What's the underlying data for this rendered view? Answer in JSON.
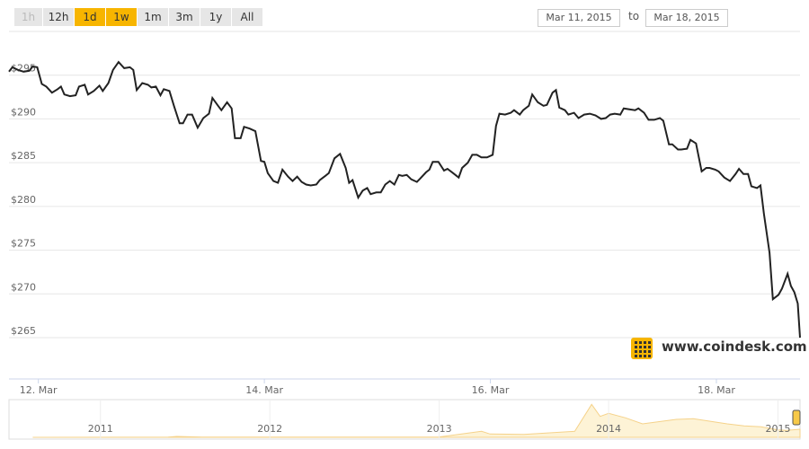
{
  "range_selector": {
    "buttons": [
      {
        "label": "1h",
        "state": "disabled"
      },
      {
        "label": "12h",
        "state": "normal"
      },
      {
        "label": "1d",
        "state": "active"
      },
      {
        "label": "1w",
        "state": "active"
      },
      {
        "label": "1m",
        "state": "normal"
      },
      {
        "label": "3m",
        "state": "normal"
      },
      {
        "label": "1y",
        "state": "normal"
      },
      {
        "label": "All",
        "state": "normal"
      }
    ],
    "from": "Mar 11, 2015",
    "to_label": "to",
    "to": "Mar 18, 2015"
  },
  "watermark": "www.coindesk.com",
  "chart_data": {
    "type": "line",
    "color": "#222222",
    "grid": true,
    "xlim": [
      11.74,
      18.74
    ],
    "xticks": [
      {
        "value": 12,
        "label": "12. Mar"
      },
      {
        "value": 14,
        "label": "14. Mar"
      },
      {
        "value": 16,
        "label": "16. Mar"
      },
      {
        "value": 18,
        "label": "18. Mar"
      }
    ],
    "ylim": [
      261,
      300
    ],
    "yticks": [
      {
        "value": 265,
        "label": "$265"
      },
      {
        "value": 270,
        "label": "$270"
      },
      {
        "value": 275,
        "label": "$275"
      },
      {
        "value": 280,
        "label": "$280"
      },
      {
        "value": 285,
        "label": "$285"
      },
      {
        "value": 290,
        "label": "$290"
      },
      {
        "value": 295,
        "label": "$295"
      }
    ],
    "x": [
      11.74,
      11.77,
      11.82,
      11.87,
      11.92,
      11.95,
      11.99,
      12.03,
      12.07,
      12.12,
      12.17,
      12.2,
      12.23,
      12.28,
      12.33,
      12.36,
      12.41,
      12.44,
      12.49,
      12.54,
      12.57,
      12.62,
      12.66,
      12.71,
      12.76,
      12.81,
      12.84,
      12.87,
      12.92,
      12.97,
      13.0,
      13.04,
      13.08,
      13.11,
      13.16,
      13.2,
      13.25,
      13.28,
      13.32,
      13.36,
      13.41,
      13.46,
      13.51,
      13.54,
      13.59,
      13.62,
      13.67,
      13.71,
      13.74,
      13.79,
      13.82,
      13.87,
      13.92,
      13.97,
      14.0,
      14.03,
      14.08,
      14.12,
      14.16,
      14.21,
      14.25,
      14.29,
      14.33,
      14.37,
      14.41,
      14.46,
      14.49,
      14.54,
      14.57,
      14.62,
      14.67,
      14.72,
      14.75,
      14.78,
      14.83,
      14.87,
      14.91,
      14.94,
      14.99,
      15.03,
      15.07,
      15.11,
      15.15,
      15.19,
      15.22,
      15.26,
      15.3,
      15.35,
      15.38,
      15.43,
      15.46,
      15.49,
      15.54,
      15.59,
      15.62,
      15.67,
      15.72,
      15.75,
      15.8,
      15.84,
      15.88,
      15.92,
      15.97,
      16.02,
      16.05,
      16.08,
      16.13,
      16.18,
      16.21,
      16.26,
      16.29,
      16.34,
      16.37,
      16.42,
      16.47,
      16.5,
      16.55,
      16.58,
      16.61,
      16.66,
      16.69,
      16.74,
      16.78,
      16.83,
      16.88,
      16.93,
      16.98,
      17.02,
      17.06,
      17.1,
      17.15,
      17.18,
      17.23,
      17.28,
      17.31,
      17.36,
      17.4,
      17.45,
      17.5,
      17.53,
      17.58,
      17.61,
      17.66,
      17.69,
      17.74,
      17.77,
      17.82,
      17.87,
      17.91,
      17.94,
      17.99,
      18.02,
      18.07,
      18.12,
      18.17,
      18.2,
      18.24,
      18.28,
      18.31,
      18.36,
      18.39,
      18.42,
      18.47,
      18.5,
      18.55,
      18.58,
      18.63,
      18.66,
      18.69,
      18.72,
      18.74
    ],
    "values": [
      295.4,
      295.9,
      295.6,
      295.4,
      295.5,
      296.0,
      295.9,
      294.0,
      293.7,
      293.0,
      293.4,
      293.7,
      292.8,
      292.6,
      292.7,
      293.7,
      293.9,
      292.8,
      293.2,
      293.8,
      293.2,
      294.1,
      295.6,
      296.5,
      295.8,
      295.9,
      295.6,
      293.3,
      294.1,
      293.9,
      293.6,
      293.7,
      292.7,
      293.4,
      293.2,
      291.5,
      289.5,
      289.5,
      290.5,
      290.5,
      289.0,
      290.1,
      290.6,
      292.4,
      291.5,
      291.0,
      291.9,
      291.2,
      287.8,
      287.8,
      289.1,
      288.9,
      288.6,
      285.2,
      285.1,
      283.8,
      282.9,
      282.7,
      284.2,
      283.4,
      282.9,
      283.4,
      282.8,
      282.5,
      282.4,
      282.5,
      283.0,
      283.5,
      283.8,
      285.5,
      286.0,
      284.4,
      282.7,
      283.0,
      281.0,
      281.8,
      282.1,
      281.4,
      281.6,
      281.6,
      282.5,
      282.9,
      282.5,
      283.6,
      283.5,
      283.6,
      283.1,
      282.8,
      283.2,
      283.9,
      284.2,
      285.1,
      285.1,
      284.1,
      284.3,
      283.8,
      283.3,
      284.4,
      285.0,
      285.9,
      285.9,
      285.6,
      285.6,
      285.9,
      289.2,
      290.6,
      290.5,
      290.7,
      291.0,
      290.5,
      291.0,
      291.5,
      292.8,
      291.9,
      291.5,
      291.6,
      293.0,
      293.3,
      291.3,
      291.0,
      290.5,
      290.7,
      290.1,
      290.5,
      290.6,
      290.4,
      290.0,
      290.1,
      290.5,
      290.6,
      290.5,
      291.2,
      291.1,
      291.0,
      291.2,
      290.7,
      289.9,
      289.9,
      290.1,
      289.8,
      287.1,
      287.1,
      286.5,
      286.5,
      286.6,
      287.6,
      287.2,
      284.0,
      284.4,
      284.4,
      284.2,
      284.0,
      283.3,
      282.9,
      283.7,
      284.3,
      283.7,
      283.7,
      282.3,
      282.1,
      282.4,
      279.2,
      274.7,
      269.4,
      269.9,
      270.6,
      272.3,
      270.9,
      270.2,
      268.9,
      265.0
    ]
  },
  "navigator": {
    "type": "area",
    "color": "#f5d28a",
    "xlim": [
      2010.46,
      2015.13
    ],
    "ylim": [
      0,
      1200
    ],
    "xticks": [
      {
        "value": 2011,
        "label": "2011"
      },
      {
        "value": 2012,
        "label": "2012"
      },
      {
        "value": 2013,
        "label": "2013"
      },
      {
        "value": 2014,
        "label": "2014"
      },
      {
        "value": 2015,
        "label": "2015"
      }
    ],
    "x": [
      2010.6,
      2011.4,
      2011.45,
      2011.6,
      2012,
      2012.5,
      2013,
      2013.25,
      2013.3,
      2013.5,
      2013.8,
      2013.9,
      2013.95,
      2014.0,
      2014.1,
      2014.2,
      2014.4,
      2014.5,
      2014.7,
      2014.8,
      2014.9,
      2015.0,
      2015.05,
      2015.13
    ],
    "values": [
      0.1,
      8,
      30,
      10,
      5,
      7,
      13,
      200,
      110,
      100,
      200,
      1100,
      700,
      800,
      650,
      450,
      600,
      620,
      450,
      380,
      350,
      250,
      230,
      270
    ]
  }
}
